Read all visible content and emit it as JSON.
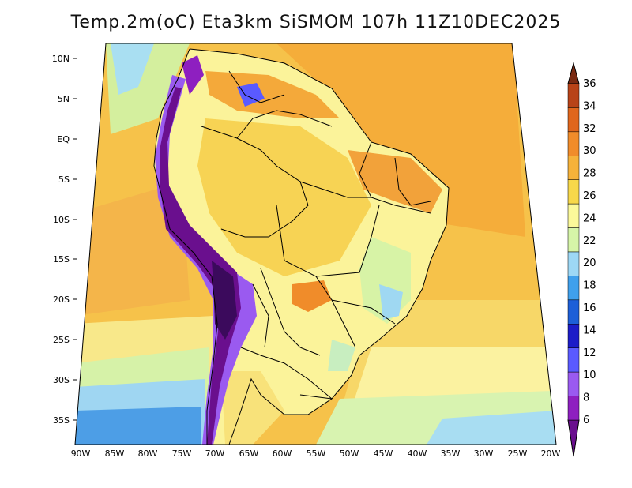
{
  "map": {
    "title": "Temp.2m(oC) Eta3km SiSMOM 107h 11Z10DEC2025",
    "variable": "Temp.2m",
    "units": "oC",
    "model": "Eta3km SiSMOM",
    "forecast_hour": "107h",
    "valid_time": "11Z10DEC2025",
    "lat_labels": [
      "10N",
      "5N",
      "EQ",
      "5S",
      "10S",
      "15S",
      "20S",
      "25S",
      "30S",
      "35S"
    ],
    "lon_labels": [
      "90W",
      "85W",
      "80W",
      "75W",
      "70W",
      "65W",
      "60W",
      "55W",
      "50W",
      "45W",
      "40W",
      "35W",
      "30W",
      "25W",
      "20W"
    ]
  },
  "legend": {
    "labels": [
      "6",
      "8",
      "10",
      "12",
      "14",
      "16",
      "18",
      "20",
      "22",
      "24",
      "26",
      "28",
      "30",
      "32",
      "34",
      "36"
    ],
    "colors": [
      "#6a0f8e",
      "#8e1fc0",
      "#9a5af0",
      "#5a5aff",
      "#1c1cc8",
      "#1d5fd8",
      "#3fa0ec",
      "#9dd8f5",
      "#d6f5a8",
      "#fbf99a",
      "#f7d84a",
      "#f6b23a",
      "#f18c2a",
      "#e0661c",
      "#b84318",
      "#7a2a12"
    ]
  }
}
